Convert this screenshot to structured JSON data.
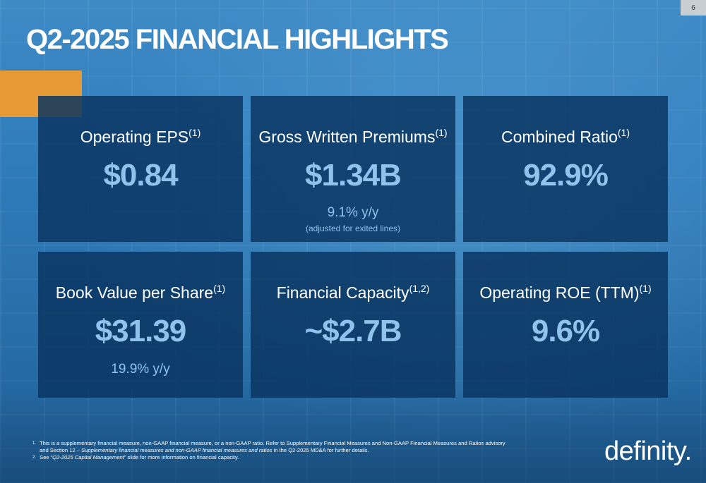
{
  "page_number": "6",
  "title": "Q2-2025 FINANCIAL HIGHLIGHTS",
  "colors": {
    "accent": "#e59a35",
    "card_bg": "#0a3460",
    "value_text": "#8fc3eb"
  },
  "cards": [
    {
      "label": "Operating EPS",
      "sup": "(1)",
      "value": "$0.84",
      "note": "",
      "subnote": ""
    },
    {
      "label": "Gross Written Premiums",
      "sup": "(1)",
      "value": "$1.34B",
      "note": "9.1% y/y",
      "subnote": "(adjusted for exited lines)"
    },
    {
      "label": "Combined Ratio",
      "sup": "(1)",
      "value": "92.9%",
      "note": "",
      "subnote": ""
    },
    {
      "label": "Book Value per Share",
      "sup": "(1)",
      "value": "$31.39",
      "note": "19.9% y/y",
      "subnote": ""
    },
    {
      "label": "Financial Capacity",
      "sup": "(1,2)",
      "value": "~$2.7B",
      "note": "",
      "subnote": ""
    },
    {
      "label": "Operating ROE (TTM)",
      "sup": "(1)",
      "value": "9.6%",
      "note": "",
      "subnote": ""
    }
  ],
  "footnotes": {
    "fn1_num": "1.",
    "fn1_a": "This is a supplementary financial measure, non-GAAP financial measure, or a non-GAAP ratio. Refer to Supplementary Financial Measures and Non-GAAP Financial Measures and Ratios advisory and Section 12 – ",
    "fn1_italic": "Supplementary financial measures and non-GAAP financial measures and ratios",
    "fn1_b": " in the Q2-2025 MD&A for further details.",
    "fn2_num": "2.",
    "fn2_a": "See “",
    "fn2_italic": "Q2-2025 Capital Management",
    "fn2_b": "” slide for more information on financial capacity."
  },
  "logo_text": "definity."
}
